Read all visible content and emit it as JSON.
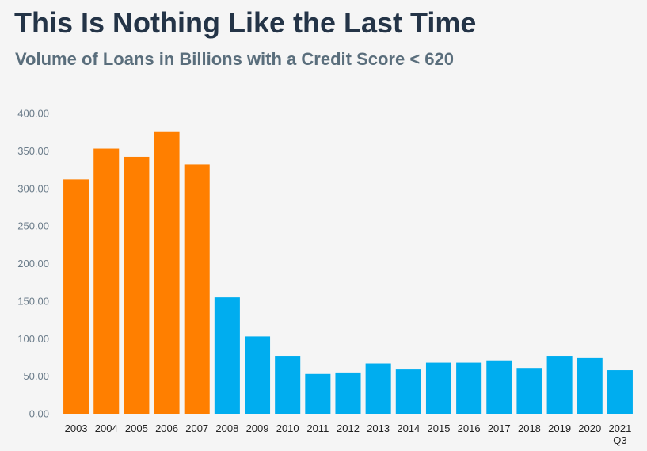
{
  "title": "This Is Nothing Like the Last Time",
  "subtitle": "Volume of Loans in Billions with a Credit Score < 620",
  "colors": {
    "highlight": "#ff7f00",
    "base": "#00adef",
    "axis_text": "#6b7c8a",
    "category_text": "#222222",
    "background": "#f5f5f5"
  },
  "chart_data": {
    "type": "bar",
    "title": "This Is Nothing Like the Last Time",
    "subtitle": "Volume of Loans in Billions with a Credit Score < 620",
    "xlabel": "",
    "ylabel": "",
    "ylim": [
      0,
      400
    ],
    "yticks": [
      0,
      50,
      100,
      150,
      200,
      250,
      300,
      350,
      400
    ],
    "ytick_labels": [
      "0.00",
      "50.00",
      "100.00",
      "150.00",
      "200.00",
      "250.00",
      "300.00",
      "350.00",
      "400.00"
    ],
    "grid": false,
    "legend": "none",
    "categories": [
      "2003",
      "2004",
      "2005",
      "2006",
      "2007",
      "2008",
      "2009",
      "2010",
      "2011",
      "2012",
      "2013",
      "2014",
      "2015",
      "2016",
      "2017",
      "2018",
      "2019",
      "2020",
      "2021\nQ3"
    ],
    "values": [
      312,
      353,
      342,
      376,
      332,
      155,
      103,
      77,
      53,
      55,
      67,
      59,
      68,
      68,
      71,
      61,
      77,
      74,
      58
    ],
    "bar_colors": [
      "#ff7f00",
      "#ff7f00",
      "#ff7f00",
      "#ff7f00",
      "#ff7f00",
      "#00adef",
      "#00adef",
      "#00adef",
      "#00adef",
      "#00adef",
      "#00adef",
      "#00adef",
      "#00adef",
      "#00adef",
      "#00adef",
      "#00adef",
      "#00adef",
      "#00adef",
      "#00adef"
    ]
  }
}
